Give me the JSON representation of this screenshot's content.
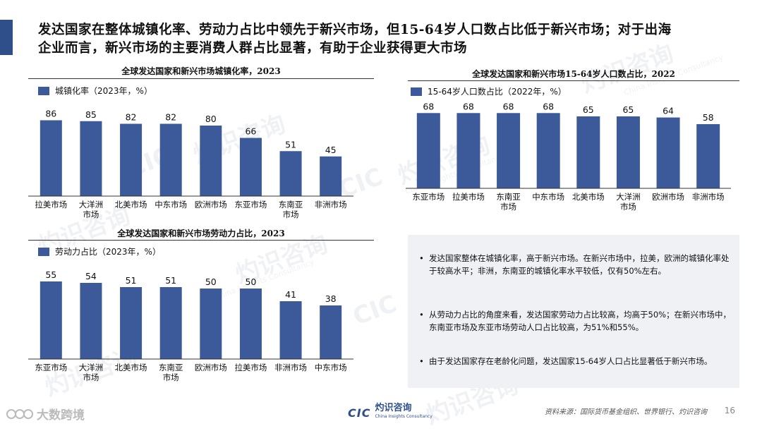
{
  "headline": {
    "line1": "发达国家在整体城镇化率、劳动力占比中领先于新兴市场，但15-64岁人口数占比低于新兴市场；对于出海",
    "line2": "企业而言，新兴市场的主要消费人群占比显著，有助于企业获得更大市场"
  },
  "colors": {
    "bar": "#3c5a99",
    "accent": "#2f4f8a",
    "notes_bg": "#eff1f5"
  },
  "chart_data": [
    {
      "id": "urbanization",
      "type": "bar",
      "title": "全球发达国家和新兴市场城镇化率，2023",
      "legend": "城镇化率（2023年，%）",
      "categories": [
        [
          "拉美市场"
        ],
        [
          "大洋洲",
          "市场"
        ],
        [
          "北美市场"
        ],
        [
          "中东市场"
        ],
        [
          "欧洲市场"
        ],
        [
          "东亚市场"
        ],
        [
          "东南亚",
          "市场"
        ],
        [
          "非洲市场"
        ]
      ],
      "values": [
        86,
        85,
        82,
        82,
        80,
        66,
        51,
        45
      ],
      "ylim": [
        0,
        100
      ]
    },
    {
      "id": "labor",
      "type": "bar",
      "title": "全球发达国家和新兴市场劳动力占比，2023",
      "legend": "劳动力占比（2023年，%）",
      "categories": [
        [
          "东亚市场"
        ],
        [
          "大洋洲",
          "市场"
        ],
        [
          "北美市场"
        ],
        [
          "东南亚",
          "市场"
        ],
        [
          "欧洲市场"
        ],
        [
          "拉美市场"
        ],
        [
          "非洲市场"
        ],
        [
          "中东市场"
        ]
      ],
      "values": [
        55,
        54,
        51,
        51,
        50,
        50,
        41,
        38
      ],
      "ylim": [
        0,
        70
      ]
    },
    {
      "id": "age1564",
      "type": "bar",
      "title": "全球发达国家和新兴市场15-64岁人口数占比，2022",
      "legend": "15-64岁人口数占比（2022年，%）",
      "categories": [
        [
          "东亚市场"
        ],
        [
          "拉美市场"
        ],
        [
          "东南亚",
          "市场"
        ],
        [
          "中东市场"
        ],
        [
          "北美市场"
        ],
        [
          "大洋洲",
          "市场"
        ],
        [
          "欧洲市场"
        ],
        [
          "非洲市场"
        ]
      ],
      "values": [
        68,
        68,
        68,
        68,
        65,
        65,
        64,
        58
      ],
      "ylim": [
        0,
        79
      ]
    }
  ],
  "notes": [
    "发达国家整体在城镇化率，高于新兴市场。在新兴市场中，拉美，欧洲的城镇化率处于较高水平；非洲，东南亚的城镇化率水平较低，仅有50%左右。",
    "从劳动力占比的角度来看，发达国家劳动力占比较高，均高于50%；在新兴市场中，东南亚市场及东亚市场劳动人口占比较高，为51%和55%。",
    "由于发达国家存在老龄化问题，发达国家15-64岁人口占比显著低于新兴市场。"
  ],
  "footer": {
    "source": "资料来源：国际货币基金组织、世界银行、灼识咨询",
    "page": "16",
    "logo_cic": "CIC",
    "logo_cn": "灼识咨询",
    "logo_en": "China Insights Consultancy",
    "brand_left": "大数跨境"
  },
  "watermarks": {
    "cn": "灼识咨询",
    "en": "China Insights Consultancy",
    "cic": "CIC"
  }
}
